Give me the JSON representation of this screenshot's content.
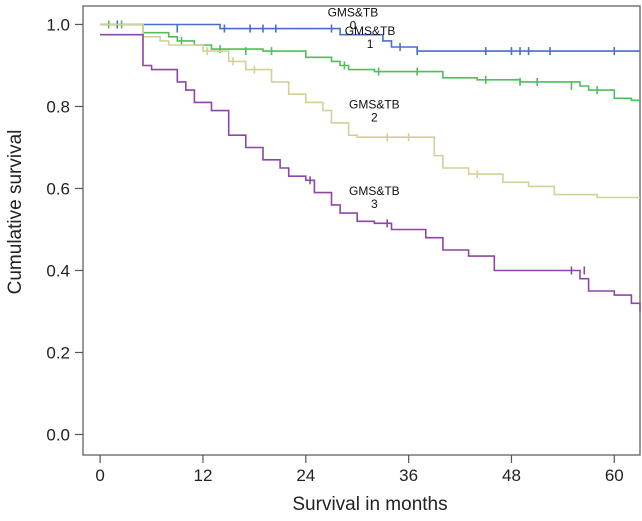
{
  "chart_data": {
    "type": "line",
    "subtype": "kaplan-meier-step",
    "xlabel": "Survival in months",
    "ylabel": "Cumulative survival",
    "xlim": [
      -2,
      63
    ],
    "ylim": [
      -0.05,
      1.045
    ],
    "xticks": [
      0,
      12,
      24,
      36,
      48,
      60
    ],
    "yticks": [
      0.0,
      0.2,
      0.4,
      0.6,
      0.8,
      1.0
    ],
    "ytick_labels": [
      "0.0",
      "0.2",
      "0.4",
      "0.6",
      "0.8",
      "1.0"
    ],
    "series": [
      {
        "name": "GMS&TB 0",
        "label_line1": "GMS&TB",
        "label_line2": "0",
        "label_pos": [
          29.5,
          1.0
        ],
        "color": "#4a6fc8",
        "steps": [
          [
            0,
            1.0
          ],
          [
            14,
            0.99
          ],
          [
            28,
            0.975
          ],
          [
            33,
            0.96
          ],
          [
            34,
            0.945
          ],
          [
            37,
            0.935
          ],
          [
            63,
            0.935
          ]
        ],
        "censored": [
          [
            2,
            1.0
          ],
          [
            9,
            0.99
          ],
          [
            14.5,
            0.99
          ],
          [
            17.5,
            0.99
          ],
          [
            19,
            0.99
          ],
          [
            20.5,
            0.99
          ],
          [
            27,
            0.99
          ],
          [
            35,
            0.945
          ],
          [
            37,
            0.935
          ],
          [
            45,
            0.935
          ],
          [
            48,
            0.935
          ],
          [
            49,
            0.935
          ],
          [
            50,
            0.935
          ],
          [
            52.5,
            0.935
          ],
          [
            60,
            0.935
          ]
        ]
      },
      {
        "name": "GMS&TB 1",
        "label_line1": "GMS&TB",
        "label_line2": "1",
        "label_pos": [
          31.5,
          0.955
        ],
        "color": "#4fbf58",
        "steps": [
          [
            0,
            1.0
          ],
          [
            5,
            0.98
          ],
          [
            8,
            0.97
          ],
          [
            9,
            0.96
          ],
          [
            11,
            0.95
          ],
          [
            13,
            0.94
          ],
          [
            19,
            0.935
          ],
          [
            24,
            0.92
          ],
          [
            27,
            0.91
          ],
          [
            28,
            0.9
          ],
          [
            29,
            0.89
          ],
          [
            32,
            0.885
          ],
          [
            40,
            0.87
          ],
          [
            44,
            0.865
          ],
          [
            49,
            0.86
          ],
          [
            56,
            0.85
          ],
          [
            57,
            0.84
          ],
          [
            60,
            0.82
          ],
          [
            62,
            0.815
          ],
          [
            63,
            0.815
          ]
        ],
        "censored": [
          [
            1,
            1.0
          ],
          [
            2.5,
            1.0
          ],
          [
            9.5,
            0.96
          ],
          [
            14,
            0.94
          ],
          [
            17,
            0.935
          ],
          [
            20,
            0.935
          ],
          [
            28.5,
            0.9
          ],
          [
            32.5,
            0.885
          ],
          [
            37,
            0.885
          ],
          [
            45,
            0.865
          ],
          [
            49,
            0.86
          ],
          [
            51,
            0.86
          ],
          [
            55,
            0.85
          ],
          [
            58,
            0.84
          ]
        ]
      },
      {
        "name": "GMS&TB 2",
        "label_line1": "GMS&TB",
        "label_line2": "2",
        "label_pos": [
          32,
          0.775
        ],
        "color": "#d5cf98",
        "steps": [
          [
            0,
            1.0
          ],
          [
            5,
            0.97
          ],
          [
            7,
            0.96
          ],
          [
            8,
            0.95
          ],
          [
            12,
            0.935
          ],
          [
            15,
            0.91
          ],
          [
            17,
            0.89
          ],
          [
            20,
            0.86
          ],
          [
            22,
            0.83
          ],
          [
            24,
            0.81
          ],
          [
            26,
            0.79
          ],
          [
            27,
            0.76
          ],
          [
            29,
            0.73
          ],
          [
            30,
            0.725
          ],
          [
            39,
            0.68
          ],
          [
            40,
            0.65
          ],
          [
            43,
            0.635
          ],
          [
            47,
            0.615
          ],
          [
            50,
            0.605
          ],
          [
            53,
            0.585
          ],
          [
            58,
            0.578
          ],
          [
            63,
            0.578
          ]
        ],
        "censored": [
          [
            12.5,
            0.935
          ],
          [
            15.5,
            0.91
          ],
          [
            18,
            0.89
          ],
          [
            33.5,
            0.725
          ],
          [
            36,
            0.725
          ],
          [
            44,
            0.635
          ]
        ]
      },
      {
        "name": "GMS&TB 3",
        "label_line1": "GMS&TB",
        "label_line2": "3",
        "label_pos": [
          32,
          0.565
        ],
        "color": "#8e45a8",
        "steps": [
          [
            0,
            0.975
          ],
          [
            5,
            0.9
          ],
          [
            6,
            0.89
          ],
          [
            9,
            0.86
          ],
          [
            10,
            0.84
          ],
          [
            11,
            0.81
          ],
          [
            13,
            0.79
          ],
          [
            15,
            0.73
          ],
          [
            17,
            0.7
          ],
          [
            19,
            0.67
          ],
          [
            21,
            0.65
          ],
          [
            22,
            0.63
          ],
          [
            24,
            0.62
          ],
          [
            25,
            0.59
          ],
          [
            27,
            0.56
          ],
          [
            28,
            0.54
          ],
          [
            30,
            0.52
          ],
          [
            32,
            0.515
          ],
          [
            34,
            0.5
          ],
          [
            38,
            0.48
          ],
          [
            40,
            0.45
          ],
          [
            43,
            0.435
          ],
          [
            46,
            0.4
          ],
          [
            56,
            0.38
          ],
          [
            57,
            0.35
          ],
          [
            60,
            0.34
          ],
          [
            62,
            0.32
          ],
          [
            63,
            0.3
          ]
        ],
        "censored": [
          [
            24.5,
            0.62
          ],
          [
            33.5,
            0.515
          ],
          [
            55,
            0.4
          ],
          [
            56.5,
            0.4
          ]
        ]
      }
    ]
  }
}
